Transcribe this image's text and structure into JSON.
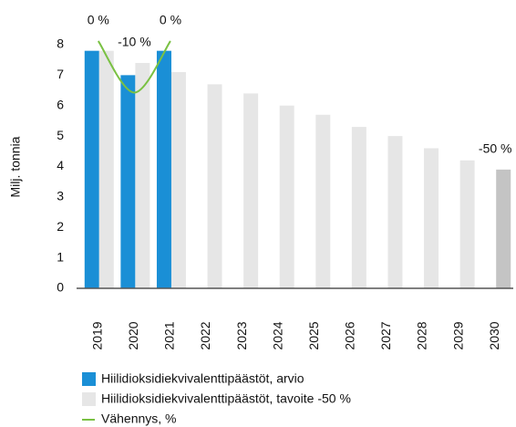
{
  "chart_data": {
    "type": "bar",
    "y_axis_label": "Milj. tonnia",
    "categories": [
      "2019",
      "2020",
      "2021",
      "2022",
      "2023",
      "2024",
      "2025",
      "2026",
      "2027",
      "2028",
      "2029",
      "2030"
    ],
    "series": [
      {
        "name": "Hiilidioksidiekvivalenttipäästöt, arvio",
        "color": "#1a8fd6",
        "values": [
          7.8,
          7.0,
          7.8,
          null,
          null,
          null,
          null,
          null,
          null,
          null,
          null,
          null
        ]
      },
      {
        "name": "Hiilidioksidiekvivalenttipäästöt, tavoite -50 %",
        "color": "#e6e6e6",
        "colors": [
          "#e6e6e6",
          "#e6e6e6",
          "#e6e6e6",
          "#e6e6e6",
          "#e6e6e6",
          "#e6e6e6",
          "#e6e6e6",
          "#e6e6e6",
          "#e6e6e6",
          "#e6e6e6",
          "#e6e6e6",
          "#c4c4c4"
        ],
        "values": [
          7.8,
          7.4,
          7.1,
          6.7,
          6.4,
          6.0,
          5.7,
          5.3,
          5.0,
          4.6,
          4.2,
          3.9
        ]
      },
      {
        "name": "Vähennys, %",
        "color": "#7ac143",
        "type": "line",
        "axis": "y2",
        "values": [
          0,
          -10,
          0,
          null,
          null,
          null,
          null,
          null,
          null,
          null,
          null,
          -50
        ],
        "value_labels": [
          "0 %",
          "-10 %",
          "0 %",
          null,
          null,
          null,
          null,
          null,
          null,
          null,
          null,
          "-50 %"
        ]
      }
    ],
    "ylim": [
      0,
      8
    ],
    "yticks": [
      0,
      1,
      2,
      3,
      4,
      5,
      6,
      7,
      8
    ],
    "y2lim": [
      -48,
      0
    ],
    "grid": false,
    "legend": "bottom"
  }
}
